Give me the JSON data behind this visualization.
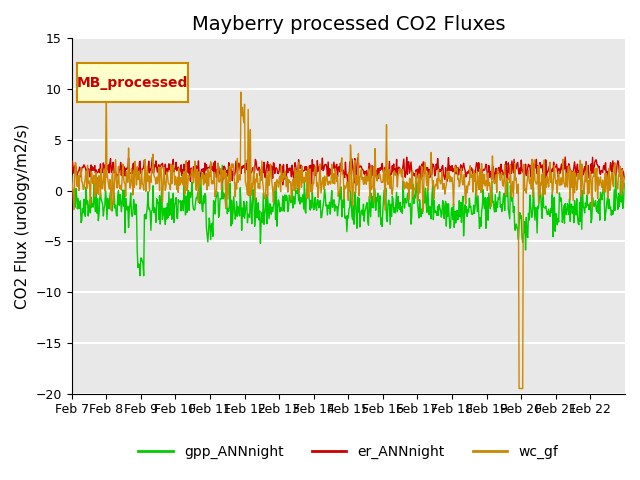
{
  "title": "Mayberry processed CO2 Fluxes",
  "ylabel": "CO2 Flux (urology/m2/s)",
  "ylim": [
    -20,
    15
  ],
  "yticks": [
    -20,
    -15,
    -10,
    -5,
    0,
    5,
    10,
    15
  ],
  "n_days": 16,
  "n_per_day": 48,
  "xtick_labels": [
    "Feb 7",
    "Feb 8",
    "Feb 9",
    "Feb 10",
    "Feb 11",
    "Feb 12",
    "Feb 13",
    "Feb 14",
    "Feb 15",
    "Feb 16",
    "Feb 17",
    "Feb 18",
    "Feb 19",
    "Feb 20",
    "Feb 21",
    "Feb 22"
  ],
  "series_names": [
    "gpp_ANNnight",
    "er_ANNnight",
    "wc_gf"
  ],
  "colors": [
    "#00cc00",
    "#cc0000",
    "#cc8800"
  ],
  "linewidths": [
    1.0,
    1.0,
    1.0
  ],
  "inset_label": "MB_processed",
  "inset_bg": "#ffffcc",
  "inset_border": "#cc8800",
  "inset_text_color": "#cc0000",
  "bg_color": "#e8e8e8",
  "grid_color": "#ffffff",
  "title_fontsize": 14,
  "label_fontsize": 11,
  "tick_fontsize": 9
}
